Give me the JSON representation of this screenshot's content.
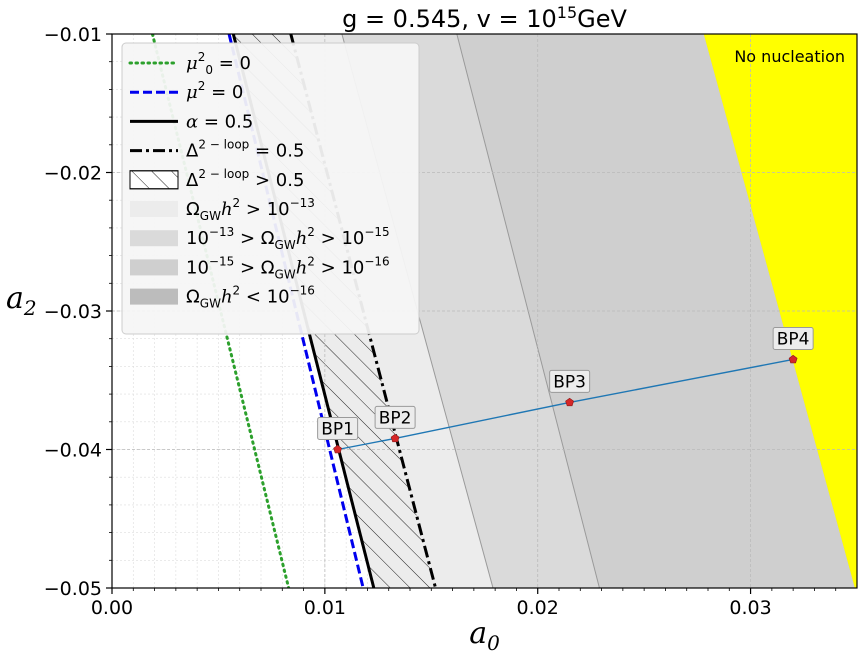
{
  "chart_data": {
    "type": "scatter",
    "title": "g = 0.545, v = 10^15 GeV",
    "title_parts": {
      "main": "g = 0.545, v = 10",
      "sup": "15",
      "unit": "GeV"
    },
    "xlabel": "a0",
    "xlabel_parts": {
      "base": "a",
      "sub": "0"
    },
    "ylabel": "a2",
    "ylabel_parts": {
      "base": "a",
      "sub": "2"
    },
    "xlim": [
      0.0,
      0.035
    ],
    "ylim": [
      -0.05,
      -0.01
    ],
    "xticks": [
      0.0,
      0.01,
      0.02,
      0.03
    ],
    "xtick_labels": [
      "0.00",
      "0.01",
      "0.02",
      "0.03"
    ],
    "yticks": [
      -0.01,
      -0.02,
      -0.03,
      -0.04,
      -0.05
    ],
    "ytick_labels": [
      "−0.01",
      "−0.02",
      "−0.03",
      "−0.04",
      "−0.05"
    ],
    "grid": true,
    "legend_position": "top-left",
    "colors": {
      "mu0": "#2ca02c",
      "mu": "#0000ee",
      "alpha": "#000000",
      "region1": "#ececec",
      "region2": "#dadada",
      "region3": "#cfcfcf",
      "region4": "#bcbcbc",
      "no_nucleation": "#ffff00",
      "bp_line": "#1f77b4",
      "bp_marker": "#d62728"
    },
    "curves": [
      {
        "id": "mu0",
        "label_parts": {
          "base": "μ",
          "sup": "2",
          "sub": "0",
          "rest": " = 0"
        },
        "style": "dotted",
        "x_at_top": 0.0019,
        "x_at_bottom": 0.0083
      },
      {
        "id": "mu",
        "label_parts": {
          "base": "μ",
          "sup": "2",
          "sub": "",
          "rest": " = 0"
        },
        "style": "dashed",
        "x_at_top": 0.0055,
        "x_at_bottom": 0.0118
      },
      {
        "id": "alpha",
        "label_parts": {
          "base": "α",
          "sup": "",
          "sub": "",
          "rest": " = 0.5"
        },
        "style": "solid",
        "x_at_top": 0.0057,
        "x_at_bottom": 0.0123
      },
      {
        "id": "delta",
        "label_parts": {
          "base": "Δ",
          "sup": "2 − loop",
          "sub": "",
          "rest": " = 0.5"
        },
        "style": "dashdot",
        "x_at_top": 0.0084,
        "x_at_bottom": 0.0152
      }
    ],
    "hatch_region": {
      "label_parts": {
        "base": "Δ",
        "sup": "2 − loop",
        "rest": " > 0.5"
      }
    },
    "regions": [
      {
        "id": "region1",
        "label": "Ω_GW h^2 > 10^-13",
        "x_at_top": 0.0057,
        "x_at_bottom": 0.0123
      },
      {
        "id": "region2",
        "label": "10^-13 > Ω_GW h^2 > 10^-15",
        "x_at_top": 0.0108,
        "x_at_bottom": 0.0179
      },
      {
        "id": "region3",
        "label": "10^-15 > Ω_GW h^2 > 10^-16",
        "x_at_top": 0.0162,
        "x_at_bottom": 0.0229
      },
      {
        "id": "region4",
        "label": "Ω_GW h^2 < 10^-16",
        "x_at_top": 0.0278,
        "x_at_bottom": 0.0349
      }
    ],
    "no_nucleation": {
      "label": "No nucleation",
      "x_at_top": 0.0278,
      "x_at_bottom": 0.0349
    },
    "benchmark_points": [
      {
        "label": "BP1",
        "x": 0.0106,
        "y": -0.04
      },
      {
        "label": "BP2",
        "x": 0.0133,
        "y": -0.0392
      },
      {
        "label": "BP3",
        "x": 0.0215,
        "y": -0.0366
      },
      {
        "label": "BP4",
        "x": 0.032,
        "y": -0.0335
      }
    ],
    "legend": [
      {
        "id": "mu0",
        "kind": "line",
        "style": "dotted",
        "label": "μ0^2 = 0"
      },
      {
        "id": "mu",
        "kind": "line",
        "style": "dashed",
        "label": "μ^2 = 0"
      },
      {
        "id": "alpha",
        "kind": "line",
        "style": "solid",
        "label": "α = 0.5"
      },
      {
        "id": "delta",
        "kind": "line",
        "style": "dashdot",
        "label": "Δ^(2-loop) = 0.5"
      },
      {
        "id": "hatch",
        "kind": "hatch",
        "label": "Δ^(2-loop) > 0.5"
      },
      {
        "id": "region1",
        "kind": "patch",
        "label": "Ω_GW h^2 > 10^-13"
      },
      {
        "id": "region2",
        "kind": "patch",
        "label": "10^-13 > Ω_GW h^2 > 10^-15"
      },
      {
        "id": "region3",
        "kind": "patch",
        "label": "10^-15 > Ω_GW h^2 > 10^-16"
      },
      {
        "id": "region4",
        "kind": "patch",
        "label": "Ω_GW h^2 < 10^-16"
      }
    ]
  }
}
